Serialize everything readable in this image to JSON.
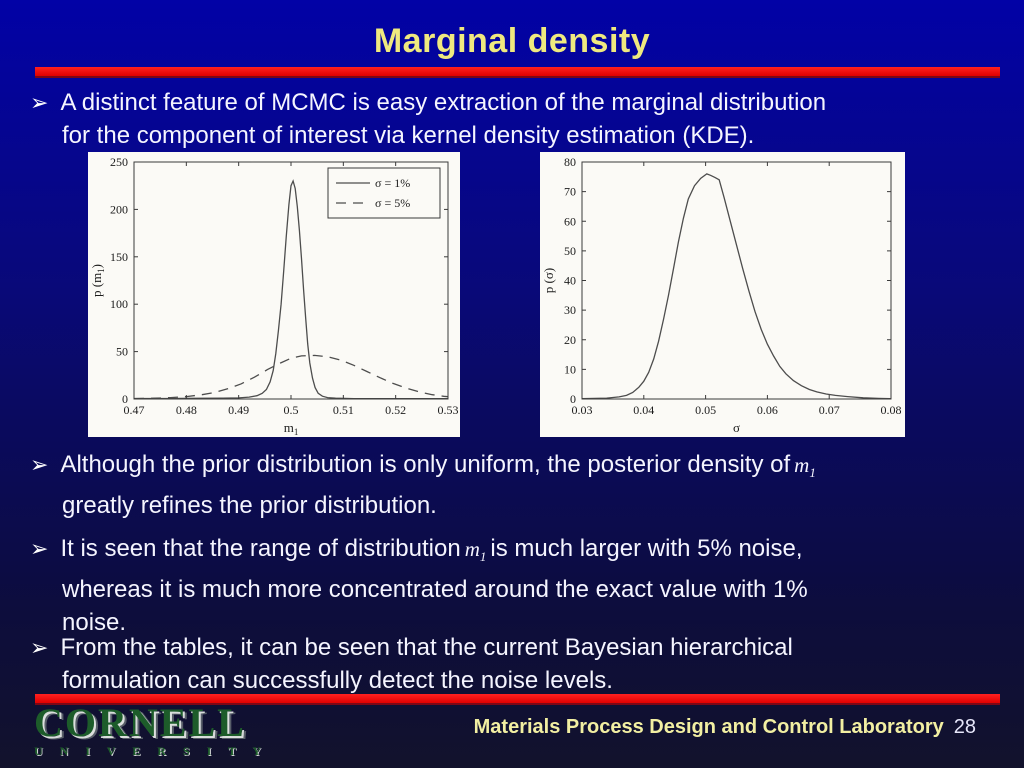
{
  "slide": {
    "title": "Marginal density",
    "bullet_glyph": "➢",
    "math": {
      "var": "m",
      "sub": "1"
    },
    "bullets": {
      "b1_l1": "A distinct feature of MCMC is easy extraction of the marginal distribution",
      "b1_l2": "for the component of interest via kernel density estimation (KDE).",
      "b2_l1": "Although the prior distribution is only uniform, the posterior density of",
      "b2_l2": "greatly refines the prior distribution.",
      "b3_l1a": "It is seen that the range of distribution",
      "b3_l1b": "is much larger with 5% noise,",
      "b3_l2": "whereas it is much more concentrated around the exact value with 1%",
      "b3_l3": "noise.",
      "b4_l1": "From the tables, it can be seen that the current Bayesian hierarchical",
      "b4_l2": "formulation can successfully detect the noise levels."
    },
    "footer": {
      "logo_line1": "CORNELL",
      "logo_line2": "U N I V E R S I T Y",
      "lab": "Materials Process Design and Control Laboratory",
      "page": "28"
    },
    "colors": {
      "background_top": "#0202a6",
      "background_bottom": "#12122c",
      "title": "#efe97f",
      "accent_bar": "#e00000",
      "body_text": "#f5f5ff",
      "footer_lab": "#f2efa2",
      "logo_green": "#1d5c2a",
      "curve": "#4d4d4d"
    }
  },
  "chart_data": [
    {
      "type": "line",
      "title": "",
      "xlabel": "m_1",
      "ylabel": "p (m_1)",
      "xlabel_segs": [
        {
          "t": "m"
        },
        {
          "t": "1",
          "sub": true
        }
      ],
      "ylabel_segs": [
        {
          "t": "p (m"
        },
        {
          "t": "1",
          "sub": true
        },
        {
          "t": ")"
        }
      ],
      "xlim": [
        0.47,
        0.53
      ],
      "ylim": [
        0,
        250
      ],
      "xticks": [
        0.47,
        0.48,
        0.49,
        0.5,
        0.51,
        0.52,
        0.53
      ],
      "xtick_labels": [
        "0.47",
        "0.48",
        "0.49",
        "0.5",
        "0.51",
        "0.52",
        "0.53"
      ],
      "yticks": [
        0,
        50,
        100,
        150,
        200,
        250
      ],
      "ytick_labels": [
        "0",
        "50",
        "100",
        "150",
        "200",
        "250"
      ],
      "grid": false,
      "legend_position": "top-right",
      "series": [
        {
          "name": "σ = 1%",
          "dash": false,
          "points": [
            [
              0.47,
              0.5
            ],
            [
              0.476,
              0.5
            ],
            [
              0.482,
              0.7
            ],
            [
              0.487,
              1
            ],
            [
              0.49,
              1.2
            ],
            [
              0.492,
              2
            ],
            [
              0.4935,
              3.5
            ],
            [
              0.4945,
              6
            ],
            [
              0.4953,
              10
            ],
            [
              0.496,
              18
            ],
            [
              0.4966,
              30
            ],
            [
              0.4971,
              48
            ],
            [
              0.4976,
              72
            ],
            [
              0.4981,
              100
            ],
            [
              0.4986,
              135
            ],
            [
              0.4991,
              172
            ],
            [
              0.4996,
              205
            ],
            [
              0.5,
              225
            ],
            [
              0.5004,
              230
            ],
            [
              0.5008,
              222
            ],
            [
              0.5012,
              203
            ],
            [
              0.5016,
              178
            ],
            [
              0.502,
              148
            ],
            [
              0.5024,
              115
            ],
            [
              0.5028,
              85
            ],
            [
              0.5032,
              58
            ],
            [
              0.5036,
              38
            ],
            [
              0.5041,
              22
            ],
            [
              0.5046,
              12
            ],
            [
              0.5052,
              6
            ],
            [
              0.506,
              3
            ],
            [
              0.507,
              1.5
            ],
            [
              0.5085,
              0.8
            ],
            [
              0.512,
              0.4
            ],
            [
              0.52,
              0.3
            ],
            [
              0.53,
              0.3
            ]
          ]
        },
        {
          "name": "σ = 5%",
          "dash": true,
          "points": [
            [
              0.47,
              0.3
            ],
            [
              0.474,
              0.8
            ],
            [
              0.477,
              1.5
            ],
            [
              0.48,
              2.5
            ],
            [
              0.483,
              4.5
            ],
            [
              0.4855,
              7
            ],
            [
              0.488,
              11
            ],
            [
              0.4905,
              16
            ],
            [
              0.493,
              23
            ],
            [
              0.4955,
              31
            ],
            [
              0.498,
              38
            ],
            [
              0.5,
              43
            ],
            [
              0.502,
              45.5
            ],
            [
              0.5045,
              46
            ],
            [
              0.507,
              44.5
            ],
            [
              0.5095,
              41
            ],
            [
              0.512,
              35.5
            ],
            [
              0.5145,
              29
            ],
            [
              0.517,
              22.5
            ],
            [
              0.5195,
              16.5
            ],
            [
              0.522,
              11.5
            ],
            [
              0.5245,
              7.5
            ],
            [
              0.527,
              4.5
            ],
            [
              0.5292,
              2.8
            ],
            [
              0.53,
              2.4
            ]
          ]
        }
      ]
    },
    {
      "type": "line",
      "title": "",
      "xlabel": "σ",
      "ylabel": "p (σ)",
      "xlabel_segs": [
        {
          "t": "σ"
        }
      ],
      "ylabel_segs": [
        {
          "t": "p (σ)"
        }
      ],
      "xlim": [
        0.03,
        0.08
      ],
      "ylim": [
        0,
        80
      ],
      "xticks": [
        0.03,
        0.04,
        0.05,
        0.06,
        0.07,
        0.08
      ],
      "xtick_labels": [
        "0.03",
        "0.04",
        "0.05",
        "0.06",
        "0.07",
        "0.08"
      ],
      "yticks": [
        0,
        10,
        20,
        30,
        40,
        50,
        60,
        70,
        80
      ],
      "ytick_labels": [
        "0",
        "10",
        "20",
        "30",
        "40",
        "50",
        "60",
        "70",
        "80"
      ],
      "grid": false,
      "legend_position": "none",
      "series": [
        {
          "name": "p(σ)",
          "dash": false,
          "points": [
            [
              0.03,
              0.1
            ],
            [
              0.034,
              0.3
            ],
            [
              0.036,
              0.7
            ],
            [
              0.0372,
              1.2
            ],
            [
              0.0382,
              2.2
            ],
            [
              0.0392,
              4
            ],
            [
              0.04,
              6
            ],
            [
              0.0408,
              9
            ],
            [
              0.0416,
              13.5
            ],
            [
              0.0424,
              19.5
            ],
            [
              0.0432,
              27
            ],
            [
              0.044,
              35
            ],
            [
              0.0448,
              44
            ],
            [
              0.0456,
              53
            ],
            [
              0.0464,
              61
            ],
            [
              0.0472,
              67.5
            ],
            [
              0.0482,
              72
            ],
            [
              0.0492,
              74.5
            ],
            [
              0.0502,
              76
            ],
            [
              0.0508,
              75.5
            ],
            [
              0.0515,
              74.8
            ],
            [
              0.0522,
              74
            ],
            [
              0.053,
              68
            ],
            [
              0.054,
              60
            ],
            [
              0.055,
              52
            ],
            [
              0.056,
              44
            ],
            [
              0.057,
              36.5
            ],
            [
              0.058,
              29.5
            ],
            [
              0.059,
              23.5
            ],
            [
              0.06,
              18.5
            ],
            [
              0.061,
              14.5
            ],
            [
              0.062,
              11
            ],
            [
              0.063,
              8.5
            ],
            [
              0.0642,
              6.2
            ],
            [
              0.0655,
              4.5
            ],
            [
              0.0668,
              3.2
            ],
            [
              0.068,
              2.4
            ],
            [
              0.0695,
              1.7
            ],
            [
              0.071,
              1.2
            ],
            [
              0.073,
              0.8
            ],
            [
              0.0755,
              0.4
            ],
            [
              0.078,
              0.2
            ],
            [
              0.08,
              0.1
            ]
          ]
        }
      ]
    }
  ]
}
